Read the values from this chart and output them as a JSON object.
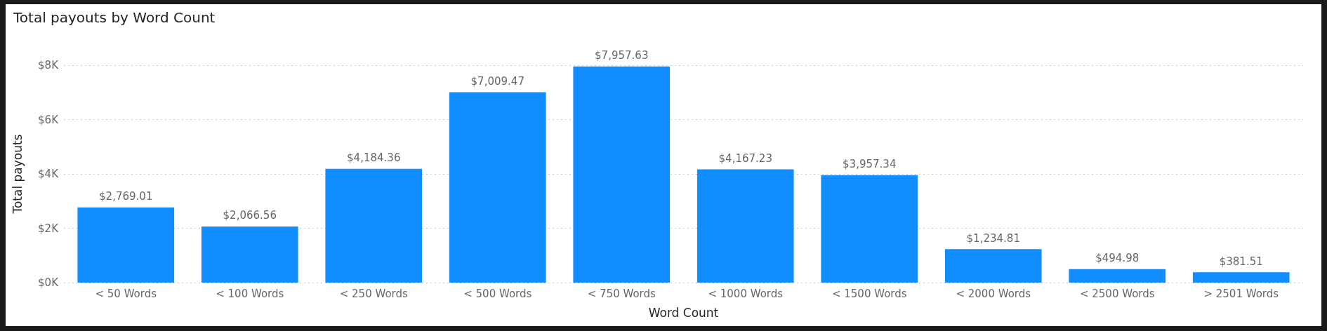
{
  "chart_data": {
    "type": "bar",
    "title": "Total payouts by Word Count",
    "xlabel": "Word Count",
    "ylabel": "Total payouts",
    "categories": [
      "< 50 Words",
      "< 100 Words",
      "< 250 Words",
      "< 500 Words",
      "< 750 Words",
      "< 1000 Words",
      "< 1500 Words",
      "< 2000 Words",
      "< 2500 Words",
      "> 2501 Words"
    ],
    "values": [
      2769.01,
      2066.56,
      4184.36,
      7009.47,
      7957.63,
      4167.23,
      3957.34,
      1234.81,
      494.98,
      381.51
    ],
    "value_labels": [
      "$2,769.01",
      "$2,066.56",
      "$4,184.36",
      "$7,009.47",
      "$7,957.63",
      "$4,167.23",
      "$3,957.34",
      "$1,234.81",
      "$494.98",
      "$381.51"
    ],
    "color": "#118dff",
    "ylim": [
      0,
      8000
    ],
    "yticks": [
      {
        "value": 0,
        "label": "$0K"
      },
      {
        "value": 2000,
        "label": "$2K"
      },
      {
        "value": 4000,
        "label": "$4K"
      },
      {
        "value": 6000,
        "label": "$6K"
      },
      {
        "value": 8000,
        "label": "$8K"
      }
    ],
    "grid": "y"
  }
}
